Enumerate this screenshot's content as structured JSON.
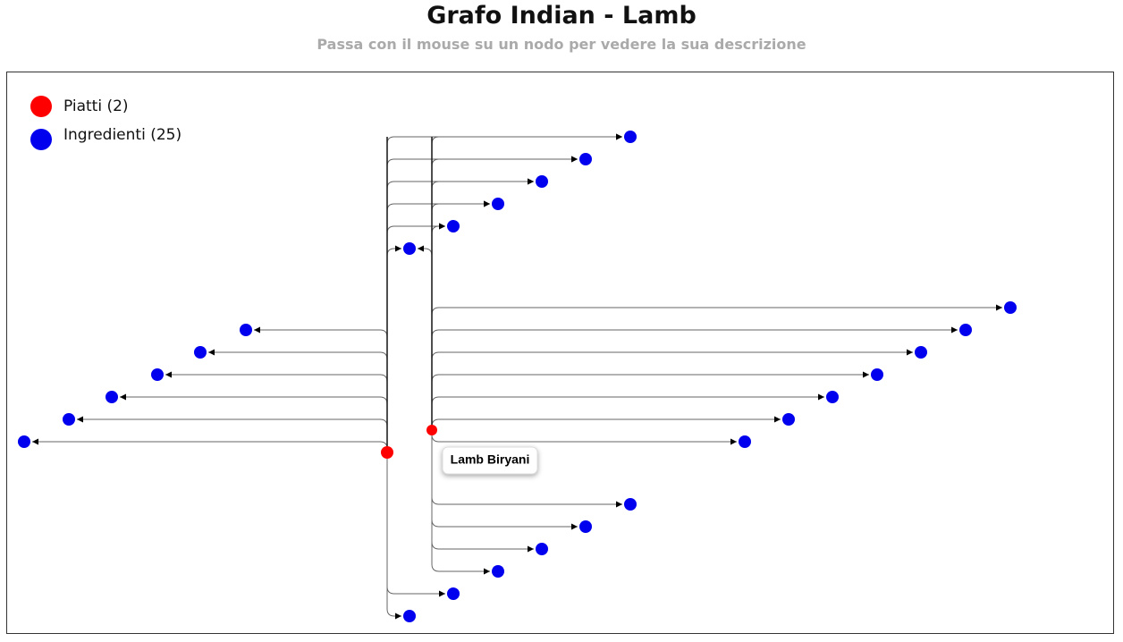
{
  "page": {
    "title": "Grafo Indian - Lamb",
    "subtitle": "Passa con il mouse su un nodo per vedere la sua descrizione"
  },
  "legend": [
    {
      "label": "Piatti (2)",
      "color": "#ff0000"
    },
    {
      "label": "Ingredienti (25)",
      "color": "#0000ee"
    }
  ],
  "tooltip": {
    "text": "Lamb Biryani"
  },
  "colors": {
    "dish": "#ff0000",
    "ingredient": "#0000ee",
    "edge": "#666666",
    "arrow": "#000000"
  }
}
